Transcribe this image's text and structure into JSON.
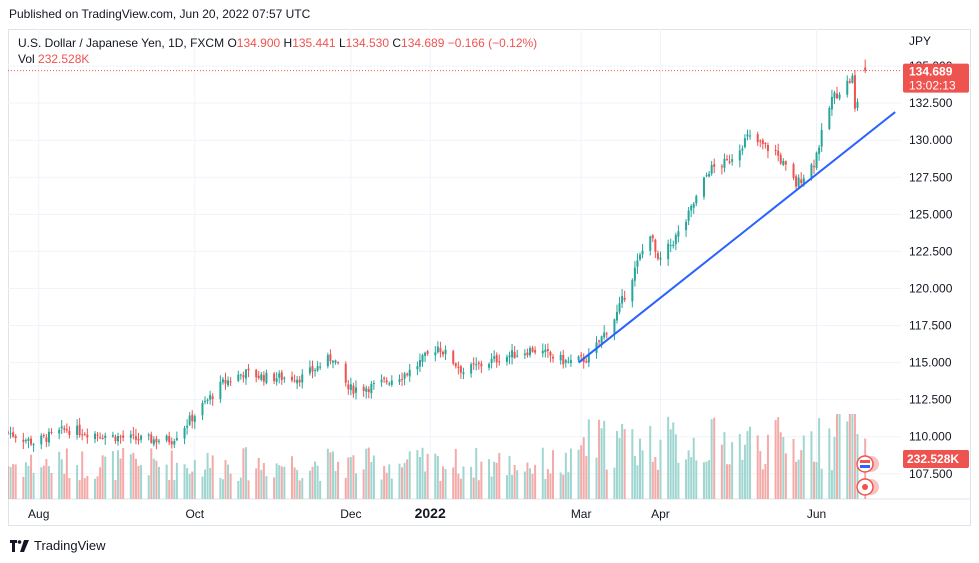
{
  "header": {
    "published": "Published on TradingView.com, Jun 20, 2022 07:57 UTC"
  },
  "legend": {
    "title": "U.S. Dollar / Japanese Yen, 1D, FXCM",
    "o_label": "O",
    "o": "134.900",
    "h_label": "H",
    "h": "135.441",
    "l_label": "L",
    "l": "134.530",
    "c_label": "C",
    "c": "134.689",
    "change": "−0.166 (−0.12%)",
    "vol_label": "Vol",
    "vol": "232.528K"
  },
  "footer": {
    "brand": "TradingView"
  },
  "chart_data": {
    "type": "candlestick",
    "currency": "JPY",
    "y_ticks": [
      135.0,
      132.5,
      130.0,
      127.5,
      125.0,
      122.5,
      120.0,
      117.5,
      115.0,
      112.5,
      110.0,
      107.5
    ],
    "y_tick_labels": [
      "135.000",
      "132.500",
      "130.000",
      "127.500",
      "125.000",
      "122.500",
      "120.000",
      "117.500",
      "115.000",
      "112.500",
      "110.000",
      "107.500"
    ],
    "ylim": [
      105.8,
      137.5
    ],
    "x_ticks": [
      "2021-08-01",
      "2021-10-01",
      "2021-12-01",
      "2022-01-01",
      "2022-03-01",
      "2022-04-01",
      "2022-06-01"
    ],
    "x_tick_labels": [
      "Aug",
      "Oct",
      "Dec",
      "2022",
      "Mar",
      "Apr",
      "Jun"
    ],
    "x_range": [
      "2021-07-20",
      "2022-07-04"
    ],
    "price_label": "134.689",
    "countdown_label": "13:02:13",
    "volume_label": "232.528K",
    "up_color": "#26a69a",
    "down_color": "#ef5350",
    "volume_up_color": "#9fd6d0",
    "volume_down_color": "#f4aaa8",
    "trendline": {
      "start": [
        "2022-02-28",
        115.0
      ],
      "end": [
        "2022-06-20",
        131.2
      ],
      "color": "#2962ff"
    },
    "key_closes": [
      [
        "2021-07-20",
        110.3
      ],
      [
        "2021-07-30",
        109.6
      ],
      [
        "2021-08-12",
        110.5
      ],
      [
        "2021-08-31",
        110.0
      ],
      [
        "2021-09-10",
        109.8
      ],
      [
        "2021-09-22",
        109.8
      ],
      [
        "2021-09-30",
        111.3
      ],
      [
        "2021-10-12",
        113.6
      ],
      [
        "2021-10-20",
        114.3
      ],
      [
        "2021-10-29",
        114.0
      ],
      [
        "2021-11-12",
        114.0
      ],
      [
        "2021-11-24",
        115.4
      ],
      [
        "2021-11-30",
        113.2
      ],
      [
        "2021-12-10",
        113.4
      ],
      [
        "2021-12-24",
        114.4
      ],
      [
        "2022-01-04",
        116.1
      ],
      [
        "2022-01-14",
        114.4
      ],
      [
        "2022-01-28",
        115.3
      ],
      [
        "2022-02-10",
        115.9
      ],
      [
        "2022-02-24",
        115.0
      ],
      [
        "2022-03-04",
        115.3
      ],
      [
        "2022-03-15",
        118.3
      ],
      [
        "2022-03-28",
        123.8
      ],
      [
        "2022-03-31",
        121.7
      ],
      [
        "2022-04-10",
        124.2
      ],
      [
        "2022-04-20",
        128.0
      ],
      [
        "2022-04-27",
        128.5
      ],
      [
        "2022-05-05",
        130.2
      ],
      [
        "2022-05-16",
        129.2
      ],
      [
        "2022-05-24",
        127.0
      ],
      [
        "2022-05-31",
        128.5
      ],
      [
        "2022-06-07",
        132.8
      ],
      [
        "2022-06-15",
        134.2
      ],
      [
        "2022-06-16",
        132.0
      ],
      [
        "2022-06-20",
        134.689
      ]
    ]
  }
}
